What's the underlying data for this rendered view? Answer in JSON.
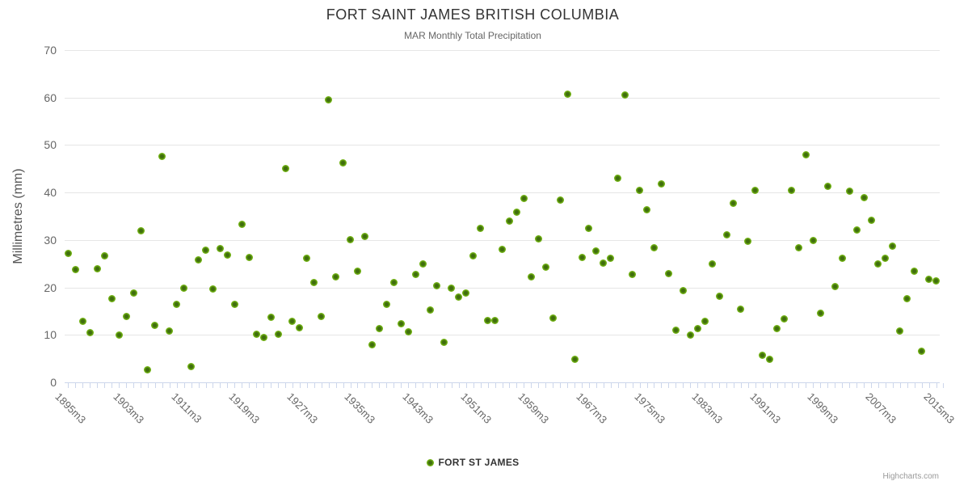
{
  "chart": {
    "title": "FORT SAINT JAMES BRITISH COLUMBIA",
    "subtitle": "MAR Monthly Total Precipitation",
    "legend": {
      "series_label": "FORT ST JAMES"
    },
    "credits": "Highcharts.com",
    "colors": {
      "marker_outer": "#7cba1e",
      "marker_inner": "#3e6c0d",
      "gridline": "#e6e6e6",
      "axis_tick": "#ccd6eb",
      "title_text": "#333333",
      "subtitle_text": "#666666",
      "axis_label_text": "#666666",
      "axis_title_text": "#555555",
      "credits_text": "#999999"
    }
  },
  "chart_data": {
    "type": "scatter",
    "title": "FORT SAINT JAMES BRITISH COLUMBIA",
    "subtitle": "MAR Monthly Total Precipitation",
    "xlabel": "",
    "ylabel": "Millimetres (mm)",
    "ylim": [
      0,
      70
    ],
    "yticks": [
      0,
      10,
      20,
      30,
      40,
      50,
      60,
      70
    ],
    "x_range": [
      1895,
      2015
    ],
    "x_tick_labels": [
      "1895m3",
      "1903m3",
      "1911m3",
      "1919m3",
      "1927m3",
      "1935m3",
      "1943m3",
      "1951m3",
      "1959m3",
      "1967m3",
      "1975m3",
      "1983m3",
      "1991m3",
      "1999m3",
      "2007m3",
      "2015m3"
    ],
    "grid": "horizontal",
    "legend_position": "bottom-center",
    "series": [
      {
        "name": "FORT ST JAMES",
        "points": [
          [
            1895,
            27.2
          ],
          [
            1896,
            23.8
          ],
          [
            1897,
            12.8
          ],
          [
            1898,
            10.5
          ],
          [
            1899,
            23.9
          ],
          [
            1900,
            26.6
          ],
          [
            1901,
            17.6
          ],
          [
            1902,
            9.9
          ],
          [
            1903,
            13.9
          ],
          [
            1904,
            18.8
          ],
          [
            1905,
            32.0
          ],
          [
            1906,
            2.7
          ],
          [
            1907,
            12.0
          ],
          [
            1908,
            47.6
          ],
          [
            1909,
            10.9
          ],
          [
            1910,
            16.4
          ],
          [
            1911,
            19.8
          ],
          [
            1912,
            3.3
          ],
          [
            1913,
            25.8
          ],
          [
            1914,
            27.8
          ],
          [
            1915,
            19.7
          ],
          [
            1916,
            28.2
          ],
          [
            1917,
            26.8
          ],
          [
            1918,
            16.4
          ],
          [
            1919,
            33.3
          ],
          [
            1920,
            26.3
          ],
          [
            1921,
            10.1
          ],
          [
            1922,
            9.5
          ],
          [
            1923,
            13.7
          ],
          [
            1924,
            10.2
          ],
          [
            1925,
            45.0
          ],
          [
            1926,
            12.8
          ],
          [
            1927,
            11.5
          ],
          [
            1928,
            26.1
          ],
          [
            1929,
            21.0
          ],
          [
            1930,
            13.9
          ],
          [
            1931,
            59.6
          ],
          [
            1932,
            22.2
          ],
          [
            1933,
            46.2
          ],
          [
            1934,
            30.1
          ],
          [
            1935,
            23.5
          ],
          [
            1936,
            30.8
          ],
          [
            1937,
            8.0
          ],
          [
            1938,
            11.3
          ],
          [
            1939,
            16.5
          ],
          [
            1940,
            21.0
          ],
          [
            1941,
            12.3
          ],
          [
            1942,
            10.7
          ],
          [
            1943,
            22.7
          ],
          [
            1944,
            24.9
          ],
          [
            1945,
            15.2
          ],
          [
            1946,
            20.4
          ],
          [
            1947,
            8.5
          ],
          [
            1948,
            19.8
          ],
          [
            1949,
            18.0
          ],
          [
            1950,
            18.8
          ],
          [
            1951,
            26.7
          ],
          [
            1952,
            32.4
          ],
          [
            1953,
            13.1
          ],
          [
            1954,
            13.1
          ],
          [
            1955,
            28.1
          ],
          [
            1956,
            34.0
          ],
          [
            1957,
            35.8
          ],
          [
            1958,
            38.7
          ],
          [
            1959,
            22.2
          ],
          [
            1960,
            30.3
          ],
          [
            1961,
            24.3
          ],
          [
            1962,
            13.5
          ],
          [
            1963,
            38.4
          ],
          [
            1964,
            60.7
          ],
          [
            1965,
            4.8
          ],
          [
            1966,
            26.4
          ],
          [
            1967,
            32.4
          ],
          [
            1968,
            27.6
          ],
          [
            1969,
            25.2
          ],
          [
            1970,
            26.1
          ],
          [
            1971,
            43.0
          ],
          [
            1972,
            60.5
          ],
          [
            1973,
            22.7
          ],
          [
            1974,
            40.5
          ],
          [
            1975,
            36.4
          ],
          [
            1976,
            28.4
          ],
          [
            1977,
            41.9
          ],
          [
            1978,
            23.0
          ],
          [
            1979,
            11.0
          ],
          [
            1980,
            19.3
          ],
          [
            1981,
            10.0
          ],
          [
            1982,
            11.3
          ],
          [
            1983,
            12.9
          ],
          [
            1984,
            25.0
          ],
          [
            1985,
            18.2
          ],
          [
            1986,
            31.1
          ],
          [
            1987,
            37.7
          ],
          [
            1988,
            15.4
          ],
          [
            1989,
            29.7
          ],
          [
            1990,
            40.5
          ],
          [
            1991,
            5.7
          ],
          [
            1992,
            4.9
          ],
          [
            1993,
            11.4
          ],
          [
            1994,
            13.4
          ],
          [
            1995,
            40.5
          ],
          [
            1996,
            28.4
          ],
          [
            1997,
            48.0
          ],
          [
            1998,
            29.9
          ],
          [
            1999,
            14.6
          ],
          [
            2000,
            41.3
          ],
          [
            2001,
            20.2
          ],
          [
            2002,
            26.1
          ],
          [
            2003,
            40.3
          ],
          [
            2004,
            32.1
          ],
          [
            2005,
            38.9
          ],
          [
            2006,
            34.2
          ],
          [
            2007,
            24.9
          ],
          [
            2008,
            26.1
          ],
          [
            2009,
            28.7
          ],
          [
            2010,
            10.9
          ],
          [
            2011,
            17.6
          ],
          [
            2012,
            23.5
          ],
          [
            2013,
            6.6
          ],
          [
            2014,
            21.7
          ],
          [
            2015,
            21.3
          ]
        ]
      }
    ]
  }
}
